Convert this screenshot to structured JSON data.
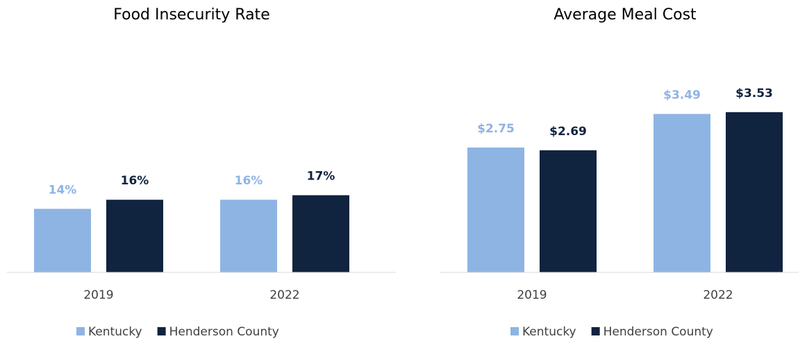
{
  "chart_data": [
    {
      "type": "bar",
      "title": "Food Insecurity Rate",
      "categories": [
        "2019",
        "2022"
      ],
      "series": [
        {
          "name": "Kentucky",
          "color": "#8eb4e3",
          "values": [
            14,
            16
          ],
          "value_labels": [
            "14%",
            "16%"
          ]
        },
        {
          "name": "Henderson County",
          "color": "#10233f",
          "values": [
            16,
            17
          ],
          "value_labels": [
            "16%",
            "17%"
          ]
        }
      ],
      "ylim": [
        0,
        20
      ]
    },
    {
      "type": "bar",
      "title": "Average Meal Cost",
      "categories": [
        "2019",
        "2022"
      ],
      "series": [
        {
          "name": "Kentucky",
          "color": "#8eb4e3",
          "values": [
            2.75,
            3.49
          ],
          "value_labels": [
            "$2.75",
            "$3.49"
          ]
        },
        {
          "name": "Henderson County",
          "color": "#10233f",
          "values": [
            2.69,
            3.53
          ],
          "value_labels": [
            "$2.69",
            "$3.53"
          ]
        }
      ],
      "ylim": [
        0,
        4
      ]
    }
  ]
}
